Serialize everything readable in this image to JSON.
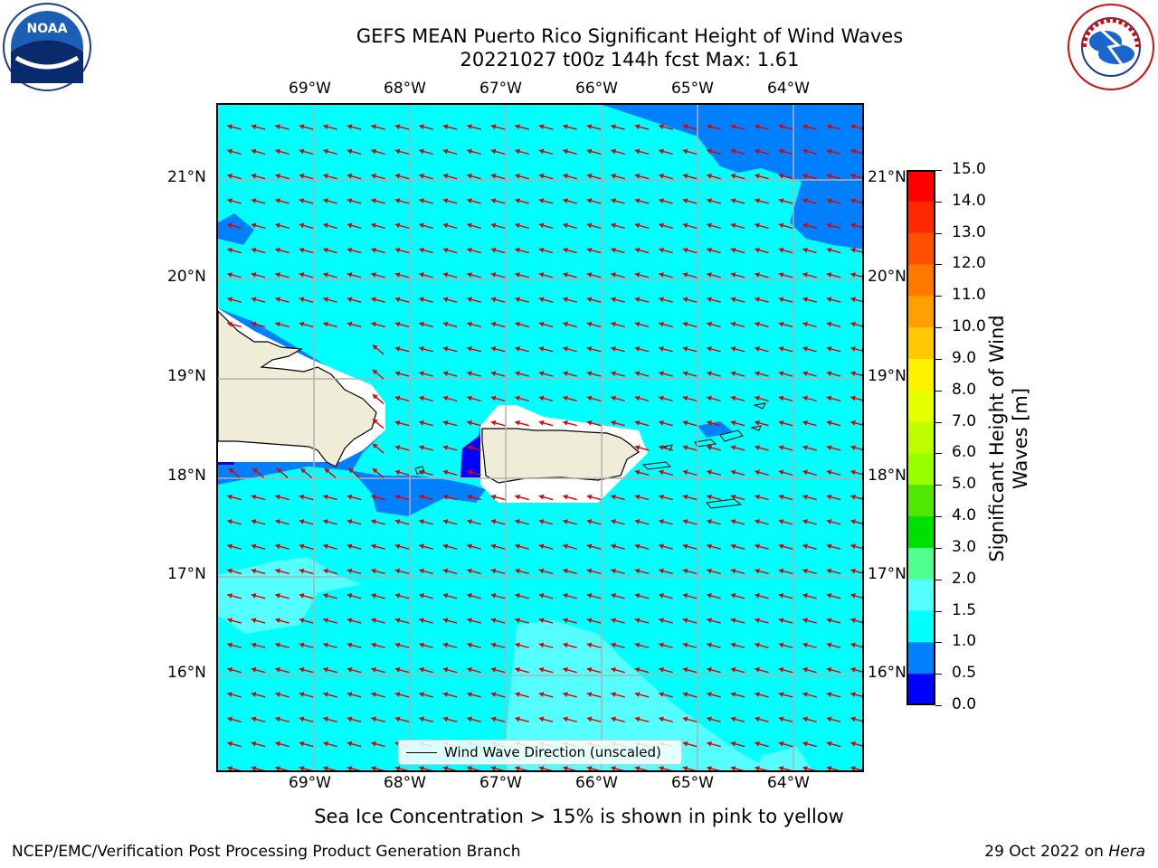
{
  "title_line1": "GEFS MEAN Puerto Rico Significant Height of Wind Waves",
  "title_line2": "20221027 t00z 144h fcst   Max: 1.61",
  "logos": {
    "left": "noaa-logo",
    "right": "nws-logo"
  },
  "map": {
    "lon_labels": [
      "69°W",
      "68°W",
      "67°W",
      "66°W",
      "65°W",
      "64°W"
    ],
    "lat_labels": [
      "21°N",
      "20°N",
      "19°N",
      "18°N",
      "17°N",
      "16°N"
    ],
    "legend_label": "Wind Wave Direction (unscaled)",
    "arrow_color": "#e00000",
    "land_color": "#efecd8",
    "colors": {
      "c0_0.5": "#0000ff",
      "c0.5_1.0": "#0080ff",
      "c1.0_1.5": "#00ffff",
      "c1.5_2.0": "#55ffff",
      "c2.0_3.0": "#aaffff"
    }
  },
  "colorbar": {
    "label": "Significant Height of Wind Waves [m]",
    "ticks": [
      "15.0",
      "14.0",
      "13.0",
      "12.0",
      "11.0",
      "10.0",
      "9.0",
      "8.0",
      "7.0",
      "6.0",
      "5.0",
      "4.0",
      "3.0",
      "2.0",
      "1.5",
      "1.0",
      "0.5",
      "0.0"
    ],
    "colors": [
      "#ff0000",
      "#ff2800",
      "#ff5000",
      "#ff7800",
      "#ffa000",
      "#ffc800",
      "#fff000",
      "#e8ff00",
      "#c0ff00",
      "#98ff00",
      "#50e800",
      "#00e000",
      "#50ff90",
      "#aaffff",
      "#55ffff",
      "#00ffff",
      "#0080ff",
      "#0000ff"
    ]
  },
  "note": "Sea Ice Concentration > 15% is shown in pink to yellow",
  "footer_left": "NCEP/EMC/Verification Post Processing Product Generation Branch",
  "footer_right_prefix": "29 Oct 2022 on ",
  "footer_right_host": "Hera"
}
